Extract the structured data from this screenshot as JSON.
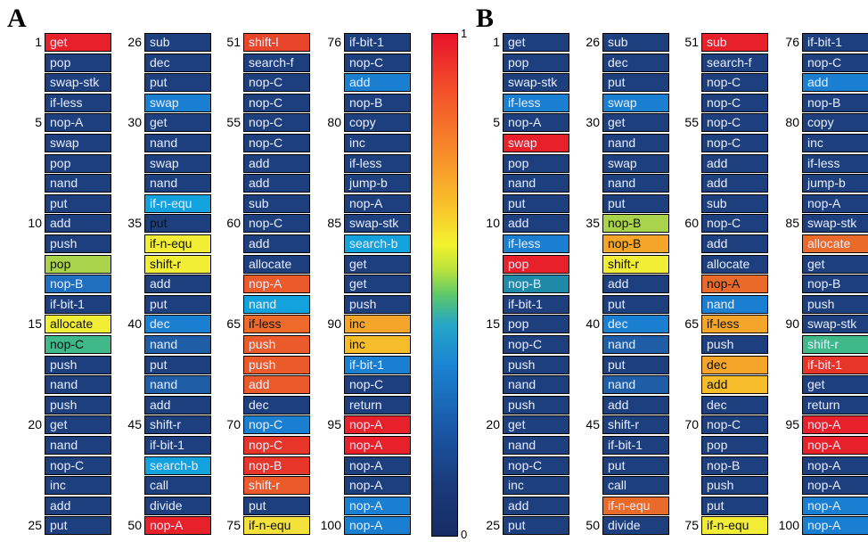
{
  "panels": [
    {
      "letter": "A",
      "instructions": [
        "get",
        "pop",
        "swap-stk",
        "if-less",
        "nop-A",
        "swap",
        "pop",
        "nand",
        "put",
        "add",
        "push",
        "pop",
        "nop-B",
        "if-bit-1",
        "allocate",
        "nop-C",
        "push",
        "nand",
        "push",
        "get",
        "nand",
        "nop-C",
        "inc",
        "add",
        "put",
        "sub",
        "dec",
        "put",
        "swap",
        "get",
        "nand",
        "swap",
        "nand",
        "if-n-equ",
        "put",
        "if-n-equ",
        "shift-r",
        "add",
        "put",
        "dec",
        "nand",
        "put",
        "nand",
        "add",
        "shift-r",
        "if-bit-1",
        "search-b",
        "call",
        "divide",
        "nop-A",
        "shift-l",
        "search-f",
        "nop-C",
        "nop-C",
        "nop-C",
        "nop-C",
        "add",
        "add",
        "sub",
        "nop-C",
        "add",
        "allocate",
        "nop-A",
        "nand",
        "if-less",
        "push",
        "push",
        "add",
        "dec",
        "nop-C",
        "nop-C",
        "nop-B",
        "shift-r",
        "put",
        "if-n-equ",
        "if-bit-1",
        "nop-C",
        "add",
        "nop-B",
        "copy",
        "inc",
        "if-less",
        "jump-b",
        "nop-A",
        "swap-stk",
        "search-b",
        "get",
        "get",
        "push",
        "inc",
        "inc",
        "if-bit-1",
        "nop-C",
        "return",
        "nop-A",
        "nop-A",
        "nop-A",
        "nop-A",
        "nop-A",
        "nop-A"
      ],
      "colors": [
        "#e8202a",
        "#1e3f7e",
        "#1e3f7e",
        "#1e3f7e",
        "#1e3f7e",
        "#1e3f7e",
        "#1e3f7e",
        "#1e3f7e",
        "#1e3f7e",
        "#1e3f7e",
        "#1e3f7e",
        "#a9d34a",
        "#1f6fbe",
        "#1e3f7e",
        "#f2ee35",
        "#3fb98a",
        "#1e3f7e",
        "#1e3f7e",
        "#1e3f7e",
        "#1e3f7e",
        "#1e3f7e",
        "#1e3f7e",
        "#1e3f7e",
        "#1e3f7e",
        "#1e3f7e",
        "#1e3f7e",
        "#1e3f7e",
        "#1e3f7e",
        "#1a7fd0",
        "#1e3f7e",
        "#1e3f7e",
        "#1e3f7e",
        "#1e3f7e",
        "#12a3de",
        "#1e3f7e",
        "#f2ee35",
        "#f2ee35",
        "#1e3f7e",
        "#1e3f7e",
        "#1a7fd0",
        "#1f5ea6",
        "#1e3f7e",
        "#1f5ea6",
        "#1e3f7e",
        "#1e3f7e",
        "#1e3f7e",
        "#12a3de",
        "#1e3f7e",
        "#1e3f7e",
        "#e8202a",
        "#e8452a",
        "#1e3f7e",
        "#1e3f7e",
        "#1e3f7e",
        "#1e3f7e",
        "#1e3f7e",
        "#1e3f7e",
        "#1e3f7e",
        "#1e3f7e",
        "#1e3f7e",
        "#1e3f7e",
        "#1e3f7e",
        "#ea5a2a",
        "#12a3de",
        "#ee6a2a",
        "#ea5a2a",
        "#ea5a2a",
        "#ea5a2a",
        "#1e3f7e",
        "#1a7fd0",
        "#e8352a",
        "#e8352a",
        "#ea5a2a",
        "#1e3f7e",
        "#f4e23a",
        "#1e3f7e",
        "#1e3f7e",
        "#1a7fd0",
        "#1e3f7e",
        "#1e3f7e",
        "#1e3f7e",
        "#1e3f7e",
        "#1e3f7e",
        "#1e3f7e",
        "#1e3f7e",
        "#12a3de",
        "#1e3f7e",
        "#1e3f7e",
        "#1e3f7e",
        "#f4a52a",
        "#f6bc2a",
        "#1a7fd0",
        "#1e3f7e",
        "#1e3f7e",
        "#e8202a",
        "#e8202a",
        "#1e3f7e",
        "#1e3f7e",
        "#1a7fd0",
        "#1a7fd0"
      ],
      "dark_text": [
        11,
        14,
        15,
        34,
        35,
        36,
        64,
        74,
        89,
        90
      ]
    },
    {
      "letter": "B",
      "instructions": [
        "get",
        "pop",
        "swap-stk",
        "if-less",
        "nop-A",
        "swap",
        "pop",
        "nand",
        "put",
        "add",
        "if-less",
        "pop",
        "nop-B",
        "if-bit-1",
        "pop",
        "nop-C",
        "push",
        "nand",
        "push",
        "get",
        "nand",
        "nop-C",
        "inc",
        "add",
        "put",
        "sub",
        "dec",
        "put",
        "swap",
        "get",
        "nand",
        "swap",
        "nand",
        "put",
        "nop-B",
        "nop-B",
        "shift-r",
        "add",
        "put",
        "dec",
        "nand",
        "put",
        "nand",
        "add",
        "shift-r",
        "if-bit-1",
        "put",
        "call",
        "if-n-equ",
        "divide",
        "sub",
        "search-f",
        "nop-C",
        "nop-C",
        "nop-C",
        "nop-C",
        "add",
        "add",
        "sub",
        "nop-C",
        "add",
        "allocate",
        "nop-A",
        "nand",
        "if-less",
        "push",
        "dec",
        "add",
        "dec",
        "nop-C",
        "pop",
        "nop-B",
        "push",
        "put",
        "if-n-equ",
        "if-bit-1",
        "nop-C",
        "add",
        "nop-B",
        "copy",
        "inc",
        "if-less",
        "jump-b",
        "nop-A",
        "swap-stk",
        "allocate",
        "get",
        "nop-B",
        "push",
        "swap-stk",
        "shift-r",
        "if-bit-1",
        "get",
        "return",
        "nop-A",
        "nop-A",
        "nop-A",
        "nop-A",
        "nop-A",
        "nop-A"
      ],
      "colors": [
        "#1e3f7e",
        "#1e3f7e",
        "#1e3f7e",
        "#1a7fd0",
        "#1e3f7e",
        "#e8202a",
        "#1e3f7e",
        "#1e3f7e",
        "#1e3f7e",
        "#1e3f7e",
        "#1a7fd0",
        "#e8202a",
        "#1f8aa8",
        "#1e3f7e",
        "#1e3f7e",
        "#1e3f7e",
        "#1e3f7e",
        "#1e3f7e",
        "#1e3f7e",
        "#1e3f7e",
        "#1e3f7e",
        "#1e3f7e",
        "#1e3f7e",
        "#1e3f7e",
        "#1e3f7e",
        "#1e3f7e",
        "#1e3f7e",
        "#1e3f7e",
        "#1a7fd0",
        "#1e3f7e",
        "#1e3f7e",
        "#1e3f7e",
        "#1e3f7e",
        "#1e3f7e",
        "#a9d34a",
        "#f4a52a",
        "#f2ee35",
        "#1e3f7e",
        "#1e3f7e",
        "#1a7fd0",
        "#1f5ea6",
        "#1e3f7e",
        "#1f5ea6",
        "#1e3f7e",
        "#1e3f7e",
        "#1e3f7e",
        "#1e3f7e",
        "#1e3f7e",
        "#ea6a2a",
        "#1e3f7e",
        "#e8202a",
        "#1e3f7e",
        "#1e3f7e",
        "#1e3f7e",
        "#1e3f7e",
        "#1e3f7e",
        "#1e3f7e",
        "#1e3f7e",
        "#1e3f7e",
        "#1e3f7e",
        "#1e3f7e",
        "#1e3f7e",
        "#ea6a2a",
        "#1a7fd0",
        "#f4a52a",
        "#1e3f7e",
        "#f4a52a",
        "#f6bc2a",
        "#1e3f7e",
        "#1e3f7e",
        "#1e3f7e",
        "#1e3f7e",
        "#1e3f7e",
        "#1e3f7e",
        "#f2ee35",
        "#1e3f7e",
        "#1e3f7e",
        "#1a7fd0",
        "#1e3f7e",
        "#1e3f7e",
        "#1e3f7e",
        "#1e3f7e",
        "#1e3f7e",
        "#1e3f7e",
        "#1e3f7e",
        "#ea6a2a",
        "#1e3f7e",
        "#1e3f7e",
        "#1e3f7e",
        "#1e3f7e",
        "#3fb98a",
        "#e8352a",
        "#1e3f7e",
        "#1e3f7e",
        "#e8202a",
        "#e8202a",
        "#1e3f7e",
        "#1e3f7e",
        "#1a7fd0",
        "#1a7fd0"
      ],
      "dark_text": [
        34,
        35,
        36,
        62,
        64,
        66,
        67,
        74
      ]
    }
  ],
  "row_labels": [
    "1",
    "5",
    "10",
    "15",
    "20",
    "25",
    "26",
    "30",
    "35",
    "40",
    "45",
    "50",
    "51",
    "55",
    "60",
    "65",
    "70",
    "75",
    "76",
    "80",
    "85",
    "90",
    "95",
    "100"
  ],
  "colorbar": {
    "max_label": "1",
    "min_label": "0"
  }
}
